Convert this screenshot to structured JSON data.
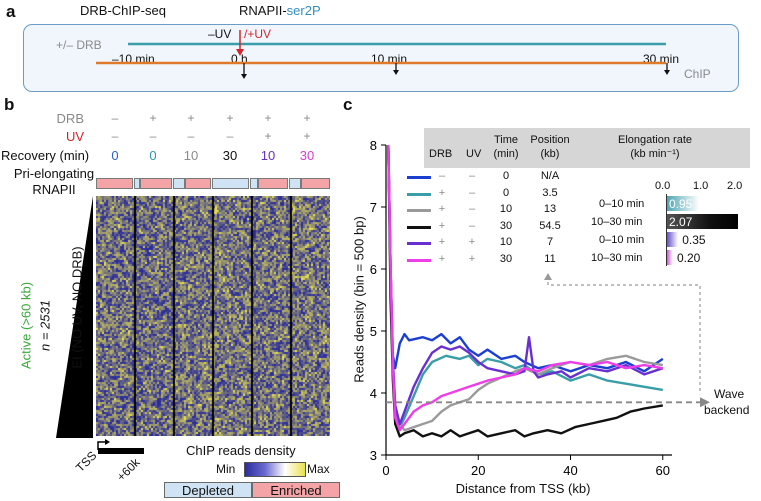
{
  "panel_a": {
    "label": "a",
    "drb_chip_label": "DRB-ChIP-seq",
    "rnapii_label": "RNAPII-",
    "ser2p_label": "ser2P",
    "drb_row": "+/– DRB",
    "uv_minus": "–UV",
    "uv_plus": "/+UV",
    "chip_label": "ChIP",
    "times": [
      "–10 min",
      "0 h",
      "10 min",
      "30 min"
    ]
  },
  "panel_b": {
    "label": "b",
    "row_headers": {
      "drb": "DRB",
      "uv": "UV",
      "recovery": "Recovery (min)",
      "pri_line1": "Pri-elongating",
      "pri_line2": "RNAPII"
    },
    "drb_values": [
      "–",
      "+",
      "+",
      "+",
      "+",
      "+"
    ],
    "uv_values": [
      "–",
      "–",
      "–",
      "–",
      "+",
      "+"
    ],
    "recovery_values": [
      "0",
      "0",
      "10",
      "30",
      "10",
      "30"
    ],
    "recovery_colors": [
      "#2a63c4",
      "#2a9aa6",
      "#8c8c8c",
      "#111111",
      "#6a2fb8",
      "#d43fd4"
    ],
    "side_active": "Active (>60 kb)",
    "side_n": "n = 2531",
    "side_ei": "EI (NO UV, NO DRB)",
    "tss": "TSS",
    "plus60k": "+60k",
    "legend_title": "ChIP reads density",
    "legend_min": "Min",
    "legend_max": "Max",
    "legend_depleted": "Depleted",
    "legend_enriched": "Enriched",
    "colors": {
      "heat_low": "#2b2d9c",
      "heat_high": "#e8e04a",
      "depleted": "#cfe3f5",
      "enriched": "#f4a3a6"
    }
  },
  "panel_c": {
    "label": "c",
    "table_headers": {
      "drb": "DRB",
      "uv": "UV",
      "time": "Time",
      "time_unit": "(min)",
      "position": "Position",
      "position_unit": "(kb)",
      "elong": "Elongation rate",
      "elong_unit": "(kb min⁻¹)"
    },
    "table_rows": [
      {
        "drb": "–",
        "uv": "–",
        "time": "0",
        "position": "N/A",
        "color": "#1b3fd1"
      },
      {
        "drb": "+",
        "uv": "–",
        "time": "0",
        "position": "3.5",
        "color": "#3a9ea8"
      },
      {
        "drb": "+",
        "uv": "–",
        "time": "10",
        "position": "13",
        "color": "#9a9a9a"
      },
      {
        "drb": "+",
        "uv": "–",
        "time": "30",
        "position": "54.5",
        "color": "#111111"
      },
      {
        "drb": "+",
        "uv": "+",
        "time": "10",
        "position": "7",
        "color": "#6a2fd0"
      },
      {
        "drb": "+",
        "uv": "+",
        "time": "30",
        "position": "11",
        "color": "#ee3ee8"
      }
    ],
    "elong_axis_ticks": [
      "0.0",
      "1.0",
      "2.0"
    ],
    "elong_rows": [
      {
        "label": "0–10 min",
        "value": 0.95,
        "text": "0.95",
        "color": "#4aa3b3"
      },
      {
        "label": "10–30 min",
        "value": 2.07,
        "text": "2.07",
        "color": "#1a1a1a"
      },
      {
        "label": "0–10 min",
        "value": 0.35,
        "text": "0.35",
        "color": "#5a3ec4"
      },
      {
        "label": "10–30 min",
        "value": 0.2,
        "text": "0.20",
        "color": "#c53ccf"
      }
    ],
    "wave_label_1": "Wave",
    "wave_label_2": "backend"
  },
  "chart_data": {
    "type": "line",
    "title": "",
    "xlabel": "Distance from TSS (kb)",
    "ylabel": "Reads density (bin = 500 bp)",
    "xlim": [
      0,
      62
    ],
    "ylim": [
      3,
      8
    ],
    "x_ticks": [
      0,
      20,
      40,
      60
    ],
    "y_ticks": [
      3,
      4,
      5,
      6,
      7,
      8
    ],
    "wave_backend_y": 3.85,
    "series": [
      {
        "name": "DRB– UV– 0 min",
        "color": "#1b3fd1",
        "x": [
          0.5,
          1,
          1.5,
          2,
          3,
          4,
          5,
          8,
          10,
          12,
          14,
          16,
          18,
          20,
          22,
          25,
          28,
          30,
          33,
          36,
          40,
          44,
          48,
          52,
          56,
          60
        ],
        "y": [
          8.0,
          6.0,
          4.6,
          4.4,
          4.8,
          4.95,
          4.85,
          4.9,
          4.85,
          4.95,
          4.8,
          4.9,
          4.7,
          4.6,
          4.7,
          4.55,
          4.6,
          4.5,
          4.4,
          4.45,
          4.35,
          4.45,
          4.4,
          4.5,
          4.35,
          4.55
        ]
      },
      {
        "name": "DRB+ UV– 0 min",
        "color": "#3a9ea8",
        "x": [
          0.5,
          1,
          1.5,
          2,
          3,
          4,
          6,
          8,
          10,
          13,
          16,
          18,
          20,
          22,
          25,
          28,
          30,
          33,
          36,
          40,
          44,
          48,
          52,
          56,
          60
        ],
        "y": [
          8.0,
          6.0,
          4.5,
          3.8,
          3.45,
          3.6,
          3.95,
          4.3,
          4.5,
          4.6,
          4.55,
          4.6,
          4.45,
          4.55,
          4.5,
          4.4,
          4.45,
          4.3,
          4.35,
          4.2,
          4.3,
          4.2,
          4.15,
          4.1,
          4.05
        ]
      },
      {
        "name": "DRB+ UV– 10 min",
        "color": "#9a9a9a",
        "x": [
          0.5,
          1,
          1.5,
          2,
          3,
          4,
          6,
          8,
          10,
          12,
          14,
          16,
          18,
          20,
          22,
          25,
          28,
          30,
          33,
          36,
          40,
          44,
          48,
          52,
          56,
          60
        ],
        "y": [
          8.0,
          6.0,
          4.5,
          3.7,
          3.5,
          3.4,
          3.45,
          3.5,
          3.55,
          3.7,
          3.8,
          3.85,
          3.9,
          4.05,
          4.15,
          4.25,
          4.35,
          4.4,
          4.3,
          4.4,
          4.5,
          4.45,
          4.55,
          4.6,
          4.5,
          4.45
        ]
      },
      {
        "name": "DRB+ UV– 30 min",
        "color": "#111111",
        "x": [
          0.5,
          1,
          1.5,
          2,
          3,
          4,
          6,
          8,
          10,
          12,
          14,
          16,
          18,
          20,
          22,
          25,
          28,
          30,
          32,
          35,
          38,
          41,
          44,
          47,
          50,
          53,
          56,
          60
        ],
        "y": [
          8.0,
          5.5,
          4.2,
          3.5,
          3.3,
          3.35,
          3.4,
          3.3,
          3.35,
          3.3,
          3.4,
          3.3,
          3.35,
          3.4,
          3.3,
          3.35,
          3.4,
          3.3,
          3.35,
          3.4,
          3.35,
          3.45,
          3.5,
          3.55,
          3.6,
          3.7,
          3.75,
          3.8
        ]
      },
      {
        "name": "DRB+ UV+ 10 min",
        "color": "#6a2fd0",
        "x": [
          0.5,
          1,
          1.5,
          2,
          3,
          4,
          6,
          8,
          10,
          12,
          14,
          16,
          18,
          20,
          22,
          25,
          28,
          30,
          31,
          32,
          33,
          35,
          38,
          40,
          44,
          48,
          52,
          56,
          60
        ],
        "y": [
          8.0,
          6.0,
          4.5,
          3.8,
          3.5,
          3.7,
          4.1,
          4.4,
          4.65,
          4.75,
          4.7,
          4.75,
          4.65,
          4.5,
          4.4,
          4.35,
          4.3,
          4.35,
          4.9,
          4.35,
          4.25,
          4.3,
          4.35,
          4.25,
          4.4,
          4.35,
          4.45,
          4.3,
          4.4
        ]
      },
      {
        "name": "DRB+ UV+ 30 min",
        "color": "#ee3ee8",
        "x": [
          0.5,
          1,
          1.5,
          2,
          3,
          4,
          6,
          8,
          10,
          12,
          14,
          16,
          18,
          20,
          22,
          25,
          28,
          30,
          33,
          36,
          40,
          44,
          48,
          52,
          56,
          60
        ],
        "y": [
          8.0,
          6.0,
          4.4,
          3.6,
          3.4,
          3.5,
          3.7,
          3.8,
          3.85,
          3.95,
          4.0,
          4.05,
          4.1,
          4.15,
          4.2,
          4.25,
          4.3,
          4.4,
          4.35,
          4.45,
          4.5,
          4.45,
          4.5,
          4.4,
          4.45,
          4.4
        ]
      }
    ]
  }
}
